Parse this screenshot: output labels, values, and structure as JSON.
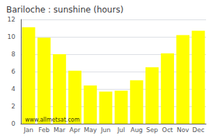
{
  "chart_data": {
    "type": "bar",
    "title": "Bariloche : sunshine (hours)",
    "categories": [
      "Jan",
      "Feb",
      "Mar",
      "Apr",
      "May",
      "Jun",
      "Jul",
      "Aug",
      "Sep",
      "Oct",
      "Nov",
      "Dec"
    ],
    "values": [
      11.1,
      9.9,
      8.0,
      6.1,
      4.4,
      3.7,
      3.8,
      5.0,
      6.5,
      8.1,
      10.2,
      10.7
    ],
    "color": "#ffff00",
    "ylim": [
      0,
      12
    ],
    "yticks": [
      0,
      2,
      4,
      6,
      8,
      10,
      12
    ],
    "grid": true,
    "annotations": [
      "www.allmetsat.com"
    ]
  }
}
